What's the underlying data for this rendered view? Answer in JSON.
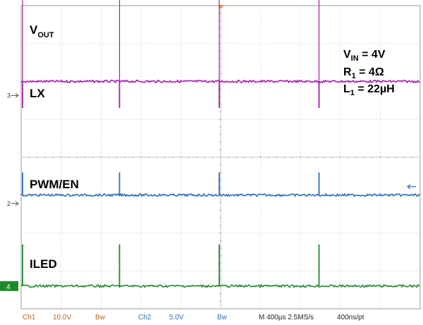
{
  "chart_data": {
    "type": "line",
    "title": "",
    "xlabel": "",
    "ylabel": "",
    "grid": true,
    "time_div": "400µs",
    "x_range_us": [
      0,
      4000
    ],
    "edge_times_us": [
      1000,
      2000,
      3000
    ],
    "series": [
      {
        "name": "VOUT",
        "name_main": "V",
        "name_sub": "OUT",
        "channel": "1",
        "color": "#b8661c",
        "level_div": 5.0,
        "spike_div": [
          0,
          0,
          0
        ]
      },
      {
        "name": "LX",
        "name_main": "LX",
        "name_sub": "",
        "channel": "3",
        "color": "#a020a8",
        "level_div": 2.0,
        "spike_div": [
          -0.7,
          -0.7,
          -0.7
        ]
      },
      {
        "name": "PWM/EN",
        "name_main": "PWM/EN",
        "name_sub": "",
        "channel": "2",
        "color": "#2e6fb8",
        "level_div": -1.0,
        "spike_div": [
          0.6,
          0.6,
          0.6
        ]
      },
      {
        "name": "ILED",
        "name_main": "ILED",
        "name_sub": "",
        "channel": "4",
        "color": "#1f8a2a",
        "level_div": -3.4,
        "spike_div": [
          1.1,
          1.1,
          1.1
        ]
      }
    ],
    "conditions": [
      {
        "main": "V",
        "sub": "IN",
        "rest": " = 4V"
      },
      {
        "main": "R",
        "sub": "1",
        "rest": " = 4Ω"
      },
      {
        "main": "L",
        "sub": "1",
        "rest": " = 22µH"
      }
    ],
    "channel_markers": [
      "3",
      "2",
      "4"
    ],
    "status_bar": [
      {
        "text": "Ch1",
        "color": "#b8661c"
      },
      {
        "text": "10.0V",
        "color": "#b8661c"
      },
      {
        "text": "Bw",
        "color": "#b8661c"
      },
      {
        "text": "Ch2",
        "color": "#2e6fb8"
      },
      {
        "text": "5.0V",
        "color": "#2e6fb8"
      },
      {
        "text": "Bw",
        "color": "#2e6fb8"
      },
      {
        "text": "M 400µs 2.5MS/s",
        "color": "#222222"
      },
      {
        "text": "400ns/pt",
        "color": "#222222"
      }
    ]
  }
}
